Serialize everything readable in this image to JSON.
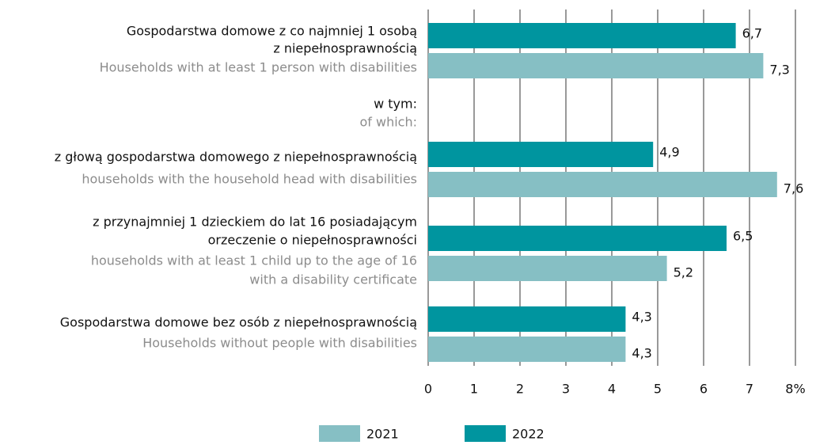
{
  "chart_data": {
    "type": "bar",
    "orientation": "horizontal",
    "categories": [
      [
        "Gospodarstwa domowe z co najmniej 1 osobą",
        "z niepełnosprawnością"
      ],
      [
        "w tym:"
      ],
      [
        "z głową gospodarstwa domowego z niepełnosprawnością"
      ],
      [
        "z przynajmniej 1 dzieckiem do lat 16 posiadającym",
        "orzeczenie o niepełnosprawności"
      ],
      [
        "Gospodarstwa domowe bez osób z niepełnosprawnością"
      ]
    ],
    "category_translations": [
      [
        "Households with at least 1 person with disabilities"
      ],
      [
        "of which:"
      ],
      [
        "households with the household head with disabilities"
      ],
      [
        "households with at least 1 child up to the age of 16",
        "with a disability certificate"
      ],
      [
        "Households without people with disabilities"
      ]
    ],
    "series": [
      {
        "name": "2022",
        "color": "#00959f",
        "values": [
          6.7,
          null,
          4.9,
          6.5,
          4.3
        ],
        "value_labels": [
          "6,7",
          null,
          "4,9",
          "6,5",
          "4,3"
        ]
      },
      {
        "name": "2021",
        "color": "#86bfc4",
        "values": [
          7.3,
          null,
          7.6,
          5.2,
          4.3
        ],
        "value_labels": [
          "7,3",
          null,
          "7,6",
          "5,2",
          "4,3"
        ]
      }
    ],
    "xlim": [
      0,
      8
    ],
    "xticks": [
      0,
      1,
      2,
      3,
      4,
      5,
      6,
      7,
      {
        "value": 8,
        "label": "8%"
      }
    ],
    "grid": true
  }
}
